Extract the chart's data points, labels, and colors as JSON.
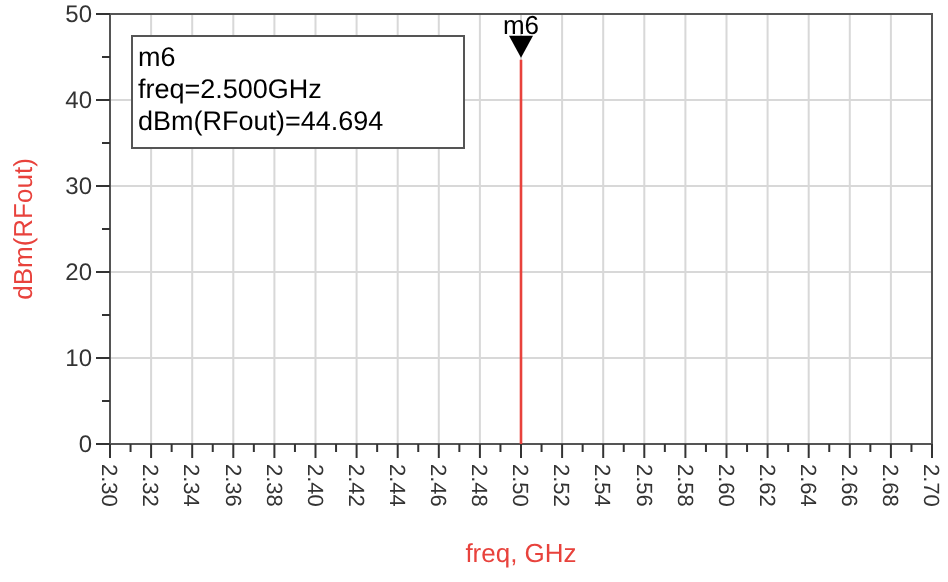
{
  "chart_data": {
    "type": "line",
    "xlabel": "freq, GHz",
    "ylabel": "dBm(RFout)",
    "series": [
      {
        "x": [
          2.5,
          2.5
        ],
        "values": [
          0,
          44.694
        ],
        "color": "#e8423c"
      }
    ],
    "xlim": [
      2.3,
      2.7
    ],
    "ylim": [
      0,
      50
    ],
    "xticks": [
      {
        "value": 2.3,
        "label": "2.30"
      },
      {
        "value": 2.31,
        "label": null
      },
      {
        "value": 2.32,
        "label": "2.32"
      },
      {
        "value": 2.33,
        "label": null
      },
      {
        "value": 2.34,
        "label": "2.34"
      },
      {
        "value": 2.35,
        "label": null
      },
      {
        "value": 2.36,
        "label": "2.36"
      },
      {
        "value": 2.37,
        "label": null
      },
      {
        "value": 2.38,
        "label": "2.38"
      },
      {
        "value": 2.39,
        "label": null
      },
      {
        "value": 2.4,
        "label": "2.40"
      },
      {
        "value": 2.41,
        "label": null
      },
      {
        "value": 2.42,
        "label": "2.42"
      },
      {
        "value": 2.43,
        "label": null
      },
      {
        "value": 2.44,
        "label": "2.44"
      },
      {
        "value": 2.45,
        "label": null
      },
      {
        "value": 2.46,
        "label": "2.46"
      },
      {
        "value": 2.47,
        "label": null
      },
      {
        "value": 2.48,
        "label": "2.48"
      },
      {
        "value": 2.49,
        "label": null
      },
      {
        "value": 2.5,
        "label": "2.50"
      },
      {
        "value": 2.51,
        "label": null
      },
      {
        "value": 2.52,
        "label": "2.52"
      },
      {
        "value": 2.53,
        "label": null
      },
      {
        "value": 2.54,
        "label": "2.54"
      },
      {
        "value": 2.55,
        "label": null
      },
      {
        "value": 2.56,
        "label": "2.56"
      },
      {
        "value": 2.57,
        "label": null
      },
      {
        "value": 2.58,
        "label": "2.58"
      },
      {
        "value": 2.59,
        "label": null
      },
      {
        "value": 2.6,
        "label": "2.60"
      },
      {
        "value": 2.61,
        "label": null
      },
      {
        "value": 2.62,
        "label": "2.62"
      },
      {
        "value": 2.63,
        "label": null
      },
      {
        "value": 2.64,
        "label": "2.64"
      },
      {
        "value": 2.65,
        "label": null
      },
      {
        "value": 2.66,
        "label": "2.66"
      },
      {
        "value": 2.67,
        "label": null
      },
      {
        "value": 2.68,
        "label": "2.68"
      },
      {
        "value": 2.69,
        "label": null
      },
      {
        "value": 2.7,
        "label": "2.70"
      }
    ],
    "yticks": [
      0,
      {
        "value": 5,
        "label": null
      },
      10,
      {
        "value": 15,
        "label": null
      },
      20,
      {
        "value": 25,
        "label": null
      },
      30,
      {
        "value": 35,
        "label": null
      },
      40,
      {
        "value": 45,
        "label": null
      },
      50
    ],
    "grid": true,
    "marker": "none",
    "line_style": "solid",
    "annotations": [
      {
        "text": "m6",
        "x": 2.5,
        "y": 44.694
      },
      "m6",
      "freq=2.500GHz",
      "dBm(RFout)=44.694"
    ]
  }
}
